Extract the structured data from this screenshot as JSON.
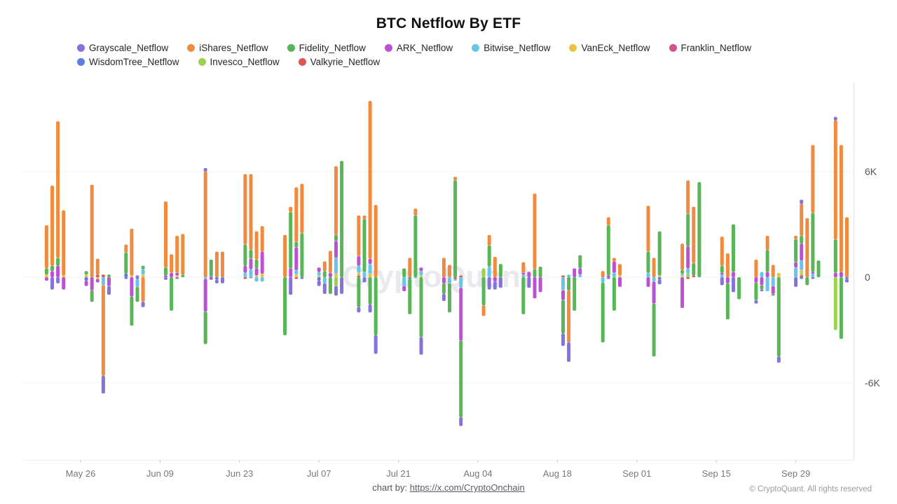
{
  "title": "BTC Netflow By ETF",
  "watermark": "CryptoQuant",
  "footer": {
    "chart_by_label": "chart by:",
    "chart_by_link": "https://x.com/CryptoOnchain",
    "copyright": "© CryptoQuant. All rights reserved"
  },
  "legend": [
    {
      "label": "Grayscale_Netflow",
      "color": "#8672d8"
    },
    {
      "label": "iShares_Netflow",
      "color": "#ef8a3f"
    },
    {
      "label": "Fidelity_Netflow",
      "color": "#58b558"
    },
    {
      "label": "ARK_Netflow",
      "color": "#bc52d3"
    },
    {
      "label": "Bitwise_Netflow",
      "color": "#66c5e8"
    },
    {
      "label": "VanEck_Netflow",
      "color": "#e8c445"
    },
    {
      "label": "Franklin_Netflow",
      "color": "#d4518f"
    },
    {
      "label": "WisdomTree_Netflow",
      "color": "#5b7de0"
    },
    {
      "label": "Invesco_Netflow",
      "color": "#9cd04e"
    },
    {
      "label": "Valkyrie_Netflow",
      "color": "#d95757"
    }
  ],
  "chart_data": {
    "type": "bar",
    "stacked": true,
    "title": "BTC Netflow By ETF",
    "xlabel": "",
    "ylabel": "",
    "value_unit": "K",
    "legend_position": "top-left",
    "grid": true,
    "ylim": [
      -10400,
      11000
    ],
    "y_ticks": [
      {
        "label": "6K",
        "value": 6
      },
      {
        "label": "0",
        "value": 0
      },
      {
        "label": "-6K",
        "value": -6
      }
    ],
    "x_ticks": [
      "May 26",
      "Jun 09",
      "Jun 23",
      "Jul 07",
      "Jul 21",
      "Aug 04",
      "Aug 18",
      "Sep 01",
      "Sep 15",
      "Sep 29"
    ],
    "series_order": [
      "Grayscale",
      "iShares",
      "Fidelity",
      "ARK",
      "Bitwise",
      "VanEck",
      "Franklin",
      "WisdomTree",
      "Invesco",
      "Valkyrie"
    ],
    "stack_order_from_zero": [
      "Valkyrie",
      "Invesco",
      "WisdomTree",
      "Franklin",
      "VanEck",
      "Bitwise",
      "ARK",
      "Fidelity",
      "iShares",
      "Grayscale"
    ],
    "series_colors": {
      "Grayscale": "#8672d8",
      "iShares": "#ef8a3f",
      "Fidelity": "#58b558",
      "ARK": "#bc52d3",
      "Bitwise": "#66c5e8",
      "VanEck": "#e8c445",
      "Franklin": "#d4518f",
      "WisdomTree": "#5b7de0",
      "Invesco": "#9cd04e",
      "Valkyrie": "#d95757"
    },
    "bars": [
      {
        "day": 1,
        "flows": {
          "iShares": 2.45,
          "Fidelity": 0.35,
          "VanEck": 0.15,
          "ARK": -0.2
        }
      },
      {
        "day": 2,
        "flows": {
          "iShares": 4.55,
          "Fidelity": 0.3,
          "ARK": 0.35,
          "Grayscale": -0.7
        }
      },
      {
        "day": 3,
        "flows": {
          "iShares": 7.75,
          "ARK": 0.65,
          "Fidelity": 0.45,
          "Grayscale": -0.35
        }
      },
      {
        "day": 4,
        "flows": {
          "iShares": 3.7,
          "VanEck": 0.1,
          "ARK": -0.7
        }
      },
      {
        "day": 8,
        "flows": {
          "Fidelity": 0.2,
          "VanEck": 0.15,
          "ARK": -0.3,
          "WisdomTree": -0.2
        }
      },
      {
        "day": 9,
        "flows": {
          "iShares": 5.25,
          "ARK": -0.75,
          "Fidelity": -0.65
        }
      },
      {
        "day": 10,
        "flows": {
          "iShares": 0.9,
          "Valkyrie": 0.15,
          "VanEck": -0.1,
          "ARK": -0.2
        }
      },
      {
        "day": 11,
        "flows": {
          "Valkyrie": 0.15,
          "Bitwise": -0.45,
          "iShares": -5.15,
          "Grayscale": -1.0
        }
      },
      {
        "day": 12,
        "flows": {
          "Fidelity": 0.15,
          "ARK": -0.5,
          "Grayscale": -0.5
        }
      },
      {
        "day": 15,
        "flows": {
          "Fidelity": 1.2,
          "iShares": 0.45,
          "WisdomTree": 0.2,
          "Grayscale": -0.1
        }
      },
      {
        "day": 16,
        "flows": {
          "iShares": 2.65,
          "VanEck": 0.1,
          "ARK": -1.1,
          "Fidelity": -1.65
        }
      },
      {
        "day": 17,
        "flows": {
          "ARK": 0.1,
          "Bitwise": -0.45,
          "Fidelity": -0.85,
          "WisdomTree": -0.1
        }
      },
      {
        "day": 18,
        "flows": {
          "Bitwise": 0.3,
          "Fidelity": 0.2,
          "VanEck": 0.15,
          "iShares": -1.4,
          "Grayscale": -0.3
        }
      },
      {
        "day": 22,
        "flows": {
          "iShares": 3.75,
          "Fidelity": 0.45,
          "ARK": 0.1,
          "Grayscale": -0.15
        }
      },
      {
        "day": 23,
        "flows": {
          "iShares": 1.05,
          "ARK": 0.25,
          "Fidelity": -1.9
        }
      },
      {
        "day": 24,
        "flows": {
          "iShares": 2.1,
          "ARK": 0.15,
          "VanEck": 0.1,
          "Grayscale": -0.1
        }
      },
      {
        "day": 25,
        "flows": {
          "iShares": 2.3,
          "Fidelity": 0.15
        }
      },
      {
        "day": 29,
        "flows": {
          "Grayscale": 0.2,
          "iShares": 6.0,
          "ARK": -1.85,
          "Fidelity": -1.85,
          "Bitwise": -0.1
        }
      },
      {
        "day": 30,
        "flows": {
          "Fidelity": 0.95,
          "WisdomTree": 0.05,
          "ARK": -0.15
        }
      },
      {
        "day": 31,
        "flows": {
          "iShares": 1.45,
          "Grayscale": -0.2,
          "WisdomTree": -0.15
        }
      },
      {
        "day": 32,
        "flows": {
          "iShares": 1.45,
          "Grayscale": -0.35
        }
      },
      {
        "day": 36,
        "flows": {
          "iShares": 4.0,
          "Fidelity": 1.2,
          "ARK": 0.4,
          "Bitwise": 0.25,
          "Valkyrie": -0.1
        }
      },
      {
        "day": 37,
        "flows": {
          "iShares": 4.3,
          "ARK": 0.6,
          "Fidelity": 0.5,
          "Bitwise": 0.45,
          "Grayscale": -0.05
        }
      },
      {
        "day": 38,
        "flows": {
          "iShares": 1.6,
          "Fidelity": 0.5,
          "ARK": 0.4,
          "VanEck": 0.1,
          "Bitwise": -0.25
        }
      },
      {
        "day": 39,
        "flows": {
          "iShares": 1.45,
          "ARK": 1.25,
          "VanEck": 0.2,
          "Bitwise": -0.25
        }
      },
      {
        "day": 43,
        "flows": {
          "iShares": 2.4,
          "Fidelity": -3.3
        }
      },
      {
        "day": 44,
        "flows": {
          "Fidelity": 3.2,
          "ARK": 0.5,
          "iShares": 0.3,
          "Grayscale": -1.0
        }
      },
      {
        "day": 45,
        "flows": {
          "iShares": 3.1,
          "ARK": 1.3,
          "Fidelity": 0.3,
          "Bitwise": 0.25,
          "VanEck": 0.15,
          "Valkyrie": -0.1
        }
      },
      {
        "day": 46,
        "flows": {
          "iShares": 2.8,
          "Fidelity": 2.5,
          "Grayscale": -0.1
        }
      },
      {
        "day": 49,
        "flows": {
          "ARK": 0.25,
          "Bitwise": 0.2,
          "VanEck": 0.1,
          "Grayscale": -0.3,
          "WisdomTree": -0.2
        }
      },
      {
        "day": 50,
        "flows": {
          "iShares": 0.55,
          "Fidelity": 0.35,
          "Bitwise": -0.35,
          "Grayscale": -0.6
        }
      },
      {
        "day": 51,
        "flows": {
          "iShares": 1.25,
          "ARK": 0.25,
          "Fidelity": -0.95
        }
      },
      {
        "day": 52,
        "flows": {
          "iShares": 3.9,
          "ARK": 0.95,
          "Bitwise": 0.9,
          "Fidelity": 0.35,
          "VanEck": 0.2,
          "Grayscale": -0.55,
          "Invesco": -0.5
        }
      },
      {
        "day": 53,
        "flows": {
          "Fidelity": 6.6,
          "Grayscale": -0.95
        }
      },
      {
        "day": 56,
        "flows": {
          "iShares": 2.3,
          "ARK": 0.55,
          "Bitwise": 0.4,
          "VanEck": 0.15,
          "Valkyrie": 0.1,
          "Fidelity": -1.7,
          "Grayscale": -0.3
        }
      },
      {
        "day": 57,
        "flows": {
          "Fidelity": 3.0,
          "Bitwise": 0.3,
          "iShares": 0.2,
          "Grayscale": -0.3
        }
      },
      {
        "day": 58,
        "flows": {
          "iShares": 8.95,
          "Bitwise": 0.55,
          "ARK": 0.3,
          "VanEck": 0.2,
          "Fidelity": -1.55,
          "Grayscale": -0.45
        }
      },
      {
        "day": 59,
        "flows": {
          "iShares": 4.1,
          "Fidelity": -3.3,
          "Grayscale": -1.05
        }
      },
      {
        "day": 64,
        "flows": {
          "Fidelity": 0.5,
          "Bitwise": -0.5,
          "ARK": -0.3
        }
      },
      {
        "day": 65,
        "flows": {
          "iShares": 1.1,
          "WisdomTree": -0.1,
          "Fidelity": -2.0
        }
      },
      {
        "day": 66,
        "flows": {
          "iShares": 0.4,
          "Fidelity": 3.5,
          "Bitwise": -0.05
        }
      },
      {
        "day": 67,
        "flows": {
          "ARK": 0.2,
          "Bitwise": 0.25,
          "VanEck": 0.1,
          "Fidelity": -3.4,
          "Grayscale": -1.0
        }
      },
      {
        "day": 71,
        "flows": {
          "iShares": 1.1,
          "ARK": -0.35,
          "Fidelity": -0.6,
          "Grayscale": -0.4
        }
      },
      {
        "day": 72,
        "flows": {
          "iShares": 0.7,
          "Bitwise": -0.35,
          "Fidelity": -1.65
        }
      },
      {
        "day": 73,
        "flows": {
          "Fidelity": 5.5,
          "iShares": 0.2,
          "Valkyrie": -0.1,
          "Bitwise": -0.1
        }
      },
      {
        "day": 74,
        "flows": {
          "Valkyrie": 0.1,
          "Bitwise": -0.6,
          "ARK": -3.0,
          "Fidelity": -4.35,
          "Grayscale": -0.5
        }
      },
      {
        "day": 78,
        "flows": {
          "Invesco": 0.5,
          "Fidelity": -1.6,
          "iShares": -0.6
        }
      },
      {
        "day": 79,
        "flows": {
          "iShares": 0.6,
          "Fidelity": 1.2,
          "Bitwise": 0.6,
          "Grayscale": -0.7
        }
      },
      {
        "day": 80,
        "flows": {
          "iShares": 1.15,
          "Grayscale": -0.45,
          "ARK": -0.25
        }
      },
      {
        "day": 81,
        "flows": {
          "Fidelity": 0.75,
          "Grayscale": -0.6
        }
      },
      {
        "day": 85,
        "flows": {
          "iShares": 0.6,
          "Bitwise": 0.15,
          "ARK": 0.1,
          "Fidelity": -2.1
        }
      },
      {
        "day": 86,
        "flows": {
          "ARK": 0.3,
          "Grayscale": -0.6
        }
      },
      {
        "day": 87,
        "flows": {
          "iShares": 4.3,
          "Fidelity": 0.45,
          "ARK": -1.2
        }
      },
      {
        "day": 88,
        "flows": {
          "Fidelity": 0.6,
          "ARK": -0.85
        }
      },
      {
        "day": 92,
        "flows": {
          "Valkyrie": 0.1,
          "Bitwise": -0.75,
          "ARK": -0.55,
          "Fidelity": -1.9,
          "Grayscale": -0.7
        }
      },
      {
        "day": 93,
        "flows": {
          "Bitwise": 0.15,
          "Fidelity": -0.75,
          "iShares": -2.95,
          "Grayscale": -1.1
        }
      },
      {
        "day": 94,
        "flows": {
          "ARK": 0.5,
          "Fidelity": -1.9
        }
      },
      {
        "day": 95,
        "flows": {
          "Fidelity": 0.75,
          "ARK": 0.35,
          "Bitwise": 0.15
        }
      },
      {
        "day": 99,
        "flows": {
          "iShares": 0.35,
          "Bitwise": -0.3,
          "Fidelity": -3.4
        }
      },
      {
        "day": 100,
        "flows": {
          "Fidelity": 2.85,
          "iShares": 0.45,
          "ARK": 0.1,
          "Grayscale": -0.1
        }
      },
      {
        "day": 101,
        "flows": {
          "ARK": 0.65,
          "Bitwise": 0.25,
          "iShares": 0.2,
          "Fidelity": -1.9
        }
      },
      {
        "day": 102,
        "flows": {
          "iShares": 0.65,
          "VanEck": 0.1,
          "ARK": -0.55
        }
      },
      {
        "day": 107,
        "flows": {
          "iShares": 2.6,
          "Fidelity": 1.2,
          "Bitwise": 0.25,
          "ARK": -0.55
        }
      },
      {
        "day": 108,
        "flows": {
          "iShares": 1.1,
          "Bitwise": -0.25,
          "ARK": -1.25,
          "Fidelity": -3.0
        }
      },
      {
        "day": 109,
        "flows": {
          "Fidelity": 2.5,
          "VanEck": 0.1,
          "Grayscale": -0.25,
          "WisdomTree": -0.15
        }
      },
      {
        "day": 113,
        "flows": {
          "iShares": 1.5,
          "Fidelity": 0.2,
          "Bitwise": 0.1,
          "VanEck": 0.1,
          "ARK": -1.75
        }
      },
      {
        "day": 114,
        "flows": {
          "iShares": 1.9,
          "Fidelity": 1.85,
          "ARK": 1.25,
          "Bitwise": 0.3,
          "Invesco": 0.2,
          "Valkyrie": -0.1
        }
      },
      {
        "day": 115,
        "flows": {
          "iShares": 3.2,
          "Fidelity": 0.7,
          "Valkyrie": 0.1
        }
      },
      {
        "day": 116,
        "flows": {
          "Fidelity": 5.4
        }
      },
      {
        "day": 120,
        "flows": {
          "iShares": 1.65,
          "Fidelity": 0.4,
          "Bitwise": 0.15,
          "ARK": 0.1,
          "Grayscale": -0.45
        }
      },
      {
        "day": 121,
        "flows": {
          "iShares": 1.35,
          "ARK": -0.35,
          "Fidelity": -2.05
        }
      },
      {
        "day": 122,
        "flows": {
          "Fidelity": 2.7,
          "ARK": 0.3,
          "Grayscale": -0.85
        }
      },
      {
        "day": 123,
        "flows": {
          "Fidelity": -1.25
        }
      },
      {
        "day": 126,
        "flows": {
          "iShares": 1.0,
          "ARK": -0.3,
          "Fidelity": -1.0,
          "Grayscale": -0.2
        }
      },
      {
        "day": 127,
        "flows": {
          "Bitwise": 0.3,
          "ARK": -0.45,
          "Fidelity": -0.25,
          "Grayscale": -0.1
        }
      },
      {
        "day": 128,
        "flows": {
          "iShares": 0.8,
          "Fidelity": 1.25,
          "ARK": 0.3,
          "Bitwise": -0.8
        }
      },
      {
        "day": 129,
        "flows": {
          "iShares": 0.7,
          "Bitwise": -0.5,
          "ARK": -0.45,
          "Fidelity": -0.1
        }
      },
      {
        "day": 130,
        "flows": {
          "VanEck": 0.25,
          "Fidelity": -4.5,
          "Grayscale": -0.35
        }
      },
      {
        "day": 133,
        "flows": {
          "Fidelity": 1.3,
          "Bitwise": 0.55,
          "ARK": 0.3,
          "iShares": 0.2,
          "Grayscale": -0.55
        }
      },
      {
        "day": 134,
        "flows": {
          "Grayscale": 0.25,
          "iShares": 1.8,
          "ARK": 0.95,
          "Bitwise": 0.55,
          "Fidelity": 0.45,
          "VanEck": 0.2,
          "Valkyrie": 0.1,
          "Invesco": 0.1,
          "WisdomTree": -0.1
        }
      },
      {
        "day": 135,
        "flows": {
          "iShares": 3.35,
          "Fidelity": -0.45
        }
      },
      {
        "day": 136,
        "flows": {
          "iShares": 3.85,
          "Fidelity": 3.35,
          "Bitwise": 0.2,
          "ARK": 0.1,
          "Grayscale": -0.1
        }
      },
      {
        "day": 137,
        "flows": {
          "Fidelity": 0.95
        }
      },
      {
        "day": 140,
        "flows": {
          "Grayscale": 0.2,
          "iShares": 6.75,
          "Fidelity": 1.9,
          "ARK": 0.25,
          "Invesco": -3.0
        }
      },
      {
        "day": 141,
        "flows": {
          "iShares": 7.2,
          "ARK": 0.3,
          "Fidelity": -3.5
        }
      },
      {
        "day": 142,
        "flows": {
          "iShares": 3.4,
          "Grayscale": -0.2,
          "WisdomTree": -0.1
        }
      }
    ]
  }
}
